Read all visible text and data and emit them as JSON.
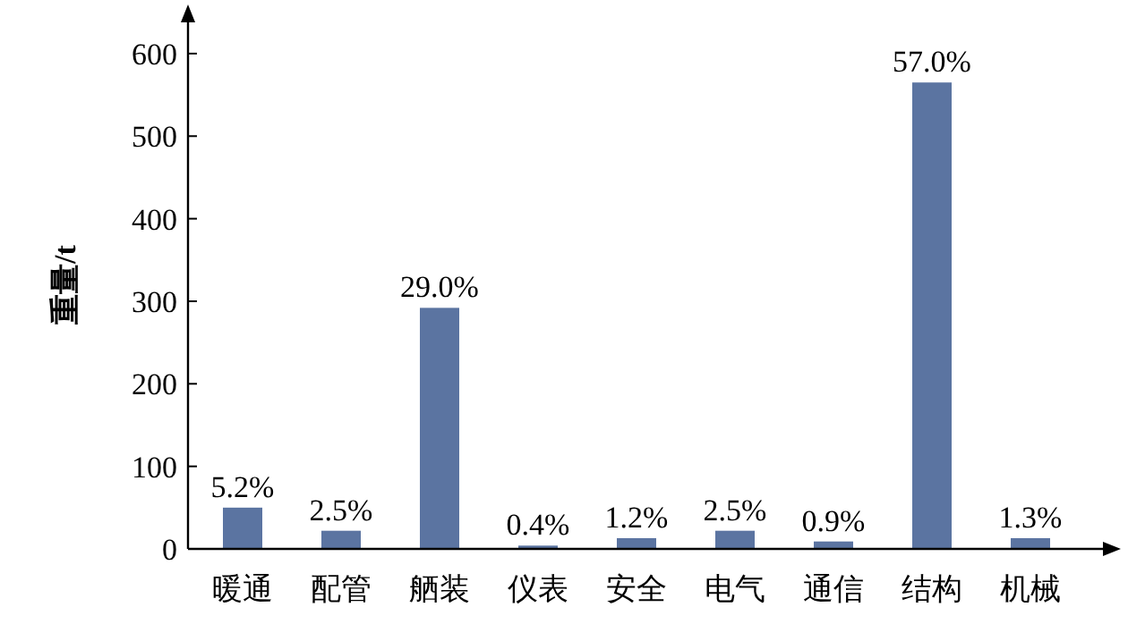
{
  "chart_data": {
    "type": "bar",
    "ylabel": "重量/t",
    "categories": [
      "暖通",
      "配管",
      "舾装",
      "仪表",
      "安全",
      "电气",
      "通信",
      "结构",
      "机械"
    ],
    "values": [
      50,
      22,
      292,
      4,
      13,
      22,
      9,
      565,
      13
    ],
    "annotations": [
      {
        "text": "5.2%",
        "x": "暖通",
        "y": 50
      },
      {
        "text": "2.5%",
        "x": "配管",
        "y": 22
      },
      {
        "text": "29.0%",
        "x": "舾装",
        "y": 292
      },
      {
        "text": "0.4%",
        "x": "仪表",
        "y": 4
      },
      {
        "text": "1.2%",
        "x": "安全",
        "y": 13
      },
      {
        "text": "2.5%",
        "x": "电气",
        "y": 22
      },
      {
        "text": "0.9%",
        "x": "通信",
        "y": 9
      },
      {
        "text": "57.0%",
        "x": "结构",
        "y": 565
      },
      {
        "text": "1.3%",
        "x": "机械",
        "y": 13
      }
    ],
    "color": "#5b74a1",
    "ylim": [
      0,
      640
    ],
    "yticks": [
      0,
      100,
      200,
      300,
      400,
      500,
      600
    ]
  }
}
